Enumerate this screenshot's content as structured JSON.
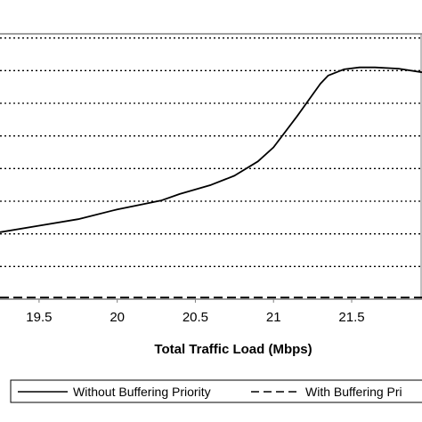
{
  "chart_data": {
    "type": "line",
    "title": "",
    "xlabel": "Total Traffic Load (Mbps)",
    "ylabel": "",
    "xlim": [
      19.25,
      21.95
    ],
    "ylim": [
      0,
      9
    ],
    "x_ticks": [
      19.5,
      20,
      20.5,
      21,
      21.5
    ],
    "x_tick_labels": [
      "19.5",
      "20",
      "20.5",
      "21",
      "21.5"
    ],
    "grid": "horizontal dotted",
    "gridlines_y": [
      1,
      2,
      3,
      4,
      5,
      6,
      7,
      8
    ],
    "legend_position": "bottom",
    "series": [
      {
        "name": "Without Buffering Priority",
        "style": "solid",
        "color": "#000000",
        "x": [
          19.25,
          19.5,
          19.75,
          20.0,
          20.28,
          20.4,
          20.6,
          20.75,
          20.9,
          21.0,
          21.15,
          21.3,
          21.35,
          21.45,
          21.55,
          21.65,
          21.8,
          21.95
        ],
        "y": [
          2.05,
          2.25,
          2.45,
          2.75,
          3.02,
          3.22,
          3.5,
          3.78,
          4.22,
          4.65,
          5.6,
          6.6,
          6.85,
          7.04,
          7.1,
          7.1,
          7.06,
          6.95
        ]
      },
      {
        "name": "With Buffering Priority",
        "style": "dashed",
        "color": "#000000",
        "x": [
          19.25,
          21.95
        ],
        "y": [
          0.05,
          0.05
        ]
      }
    ]
  },
  "legend": {
    "items": [
      {
        "label": "Without Buffering Priority",
        "style": "solid"
      },
      {
        "label": "With Buffering Pri",
        "style": "dashed"
      }
    ]
  }
}
